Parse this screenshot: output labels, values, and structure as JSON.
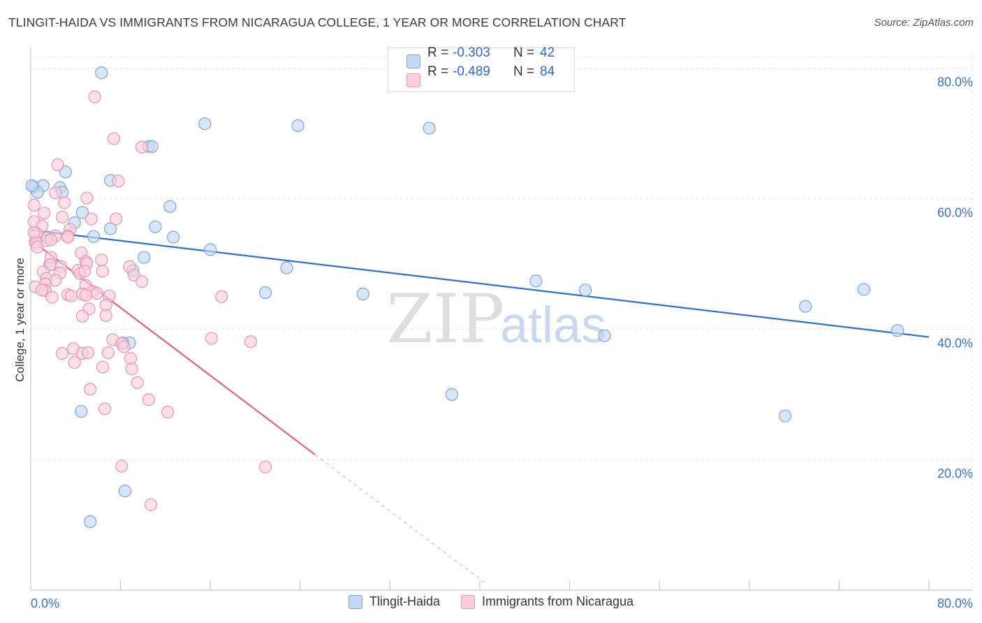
{
  "title": "TLINGIT-HAIDA VS IMMIGRANTS FROM NICARAGUA COLLEGE, 1 YEAR OR MORE CORRELATION CHART",
  "source": "Source: ZipAtlas.com",
  "watermark": {
    "zip": "ZIP",
    "atlas": "atlas"
  },
  "stats": {
    "blue": {
      "r_label": "R = ",
      "r_value": "-0.303",
      "n_label": "N = ",
      "n_value": "42"
    },
    "pink": {
      "r_label": "R = ",
      "r_value": "-0.489",
      "n_label": "N = ",
      "n_value": "84"
    }
  },
  "legend": {
    "blue": "Tlingit-Haida",
    "pink": "Immigrants from Nicaragua"
  },
  "colors": {
    "blue_fill": "#c5d8f3",
    "blue_stroke": "#7ea4d8",
    "blue_line": "#2e6fd0",
    "pink_fill": "#f9cfdc",
    "pink_stroke": "#e995b0",
    "pink_line": "#e0608a",
    "grid": "#e3e3e3",
    "axis_label": "#3a6fc8"
  },
  "chart_data": {
    "type": "scatter",
    "xlabel": "",
    "ylabel": "College, 1 year or more",
    "xlim": [
      0,
      80
    ],
    "ylim": [
      0,
      82
    ],
    "x_ticks_labels": [
      "0.0%",
      "80.0%"
    ],
    "y_ticks": [
      20,
      40,
      60,
      80
    ],
    "y_tick_labels": [
      "20.0%",
      "40.0%",
      "60.0%",
      "80.0%"
    ],
    "series": [
      {
        "name": "Tlingit-Haida",
        "points": [
          [
            6.3,
            79.3
          ],
          [
            15.5,
            71.5
          ],
          [
            23.8,
            71.2
          ],
          [
            35.5,
            70.8
          ],
          [
            10.5,
            68
          ],
          [
            10.8,
            68
          ],
          [
            3.1,
            64.1
          ],
          [
            7.1,
            62.8
          ],
          [
            0.3,
            61.8
          ],
          [
            1.1,
            62
          ],
          [
            2.6,
            61.7
          ],
          [
            0.6,
            61
          ],
          [
            2.8,
            61
          ],
          [
            12.4,
            58.8
          ],
          [
            4.6,
            57.9
          ],
          [
            3.9,
            56.3
          ],
          [
            11.1,
            55.7
          ],
          [
            7.1,
            55.4
          ],
          [
            1.5,
            54.1
          ],
          [
            5.6,
            54.2
          ],
          [
            12.7,
            54.1
          ],
          [
            16,
            52.2
          ],
          [
            10.1,
            51
          ],
          [
            9.1,
            49
          ],
          [
            1.7,
            49.9
          ],
          [
            22.8,
            49.4
          ],
          [
            8.8,
            37.9
          ],
          [
            8.2,
            37.9
          ],
          [
            4.5,
            27.4
          ],
          [
            8.4,
            15.2
          ],
          [
            5.3,
            10.5
          ],
          [
            37.5,
            30
          ],
          [
            20.9,
            45.6
          ],
          [
            29.6,
            45.4
          ],
          [
            45,
            47.4
          ],
          [
            49.4,
            46
          ],
          [
            51.1,
            39
          ],
          [
            67.2,
            26.7
          ],
          [
            69,
            43.5
          ],
          [
            74.2,
            46.1
          ],
          [
            77.2,
            39.8
          ],
          [
            0.1,
            62
          ]
        ],
        "trend": {
          "x": [
            0,
            80
          ],
          "y": [
            55.2,
            38.8
          ]
        }
      },
      {
        "name": "Immigrants from Nicaragua",
        "points": [
          [
            5.7,
            75.6
          ],
          [
            7.4,
            69.2
          ],
          [
            9.9,
            67.9
          ],
          [
            2.4,
            65.2
          ],
          [
            7.8,
            62.7
          ],
          [
            2.2,
            60.9
          ],
          [
            5,
            60.1
          ],
          [
            3,
            59.4
          ],
          [
            0.3,
            59
          ],
          [
            1.2,
            57.8
          ],
          [
            2.8,
            57.2
          ],
          [
            5.4,
            56.9
          ],
          [
            7.6,
            56.9
          ],
          [
            0.3,
            56.5
          ],
          [
            1,
            55.8
          ],
          [
            3.5,
            55.3
          ],
          [
            0.5,
            54.7
          ],
          [
            2.2,
            54.3
          ],
          [
            1.4,
            53.6
          ],
          [
            3.3,
            54.3
          ],
          [
            3.3,
            54.1
          ],
          [
            0.4,
            53.4
          ],
          [
            1.8,
            53.7
          ],
          [
            0.5,
            53.3
          ],
          [
            0.6,
            52.6
          ],
          [
            1.8,
            51
          ],
          [
            4.5,
            51.7
          ],
          [
            4.9,
            50.4
          ],
          [
            5,
            50.1
          ],
          [
            6.3,
            50.6
          ],
          [
            1.8,
            49.9
          ],
          [
            2.7,
            49.6
          ],
          [
            4.2,
            49
          ],
          [
            4.4,
            48.5
          ],
          [
            4.8,
            48.9
          ],
          [
            6.4,
            48.9
          ],
          [
            8.8,
            49.6
          ],
          [
            9.2,
            48.3
          ],
          [
            1.1,
            48.8
          ],
          [
            2.6,
            48.6
          ],
          [
            1.4,
            47.8
          ],
          [
            2.2,
            47.5
          ],
          [
            1.3,
            46.9
          ],
          [
            4.9,
            46.7
          ],
          [
            9.9,
            47.3
          ],
          [
            0.4,
            46.5
          ],
          [
            1.3,
            45.9
          ],
          [
            3.3,
            45.3
          ],
          [
            4.6,
            45.4
          ],
          [
            5.5,
            45.8
          ],
          [
            3.6,
            45.1
          ],
          [
            4.9,
            45.2
          ],
          [
            5.9,
            45.5
          ],
          [
            7,
            45.1
          ],
          [
            1.9,
            44.9
          ],
          [
            17,
            45
          ],
          [
            6.7,
            43.7
          ],
          [
            5.2,
            43.1
          ],
          [
            4.6,
            42
          ],
          [
            6.7,
            42.1
          ],
          [
            1,
            46
          ],
          [
            7.3,
            38.4
          ],
          [
            16.1,
            38.6
          ],
          [
            19.6,
            38.1
          ],
          [
            8.1,
            37.8
          ],
          [
            8.3,
            37.3
          ],
          [
            3.8,
            37
          ],
          [
            4.6,
            36.3
          ],
          [
            5.1,
            36.4
          ],
          [
            2.8,
            36.3
          ],
          [
            6.9,
            36.4
          ],
          [
            8.9,
            35.5
          ],
          [
            3.9,
            34.9
          ],
          [
            6.4,
            34.2
          ],
          [
            9,
            33.9
          ],
          [
            9.5,
            31.8
          ],
          [
            5.3,
            30.8
          ],
          [
            6.6,
            27.8
          ],
          [
            10.5,
            29.2
          ],
          [
            12.2,
            27.3
          ],
          [
            8.1,
            19
          ],
          [
            20.9,
            18.9
          ],
          [
            10.7,
            13.1
          ],
          [
            0.3,
            54.8
          ]
        ],
        "trend": {
          "x": [
            0,
            25.3
          ],
          "y": [
            53.7,
            20.8
          ]
        },
        "trend_extension": {
          "x": [
            25.3,
            40.4
          ],
          "y": [
            20.8,
            1.2
          ]
        }
      }
    ]
  }
}
